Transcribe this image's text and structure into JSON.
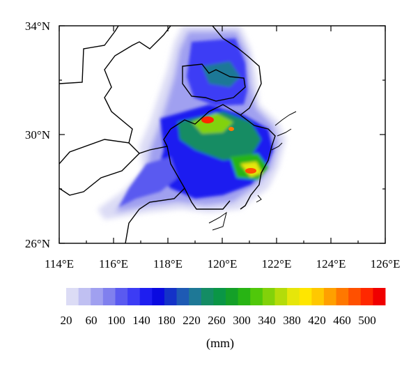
{
  "map": {
    "lat_ticks": [
      "34°N",
      "30°N",
      "26°N"
    ],
    "lon_ticks": [
      "114°E",
      "116°E",
      "118°E",
      "120°E",
      "122°E",
      "124°E",
      "126°E"
    ],
    "lat_range": [
      26,
      34
    ],
    "lon_range": [
      114,
      126
    ],
    "region": "East China (Anhui, Jiangsu, Zhejiang, Shanghai) with coastline and provincial boundaries",
    "field": "accumulated precipitation"
  },
  "colorbar": {
    "tick_labels": [
      "20",
      "60",
      "100",
      "140",
      "180",
      "220",
      "260",
      "300",
      "340",
      "380",
      "420",
      "460",
      "500"
    ],
    "unit_label": "(mm)",
    "colors": [
      "#dcdcf5",
      "#c0c0f2",
      "#a0a0f0",
      "#8080ee",
      "#5a5af0",
      "#3c3cf5",
      "#1e1ef0",
      "#0a0ae0",
      "#1432c8",
      "#1e5ab4",
      "#1e7896",
      "#148c64",
      "#0a9646",
      "#14a028",
      "#28b414",
      "#50c80a",
      "#82d20a",
      "#b4dc0a",
      "#e6e60a",
      "#ffe600",
      "#ffc800",
      "#ffa000",
      "#ff7800",
      "#ff5000",
      "#ff2800",
      "#f00000"
    ]
  }
}
